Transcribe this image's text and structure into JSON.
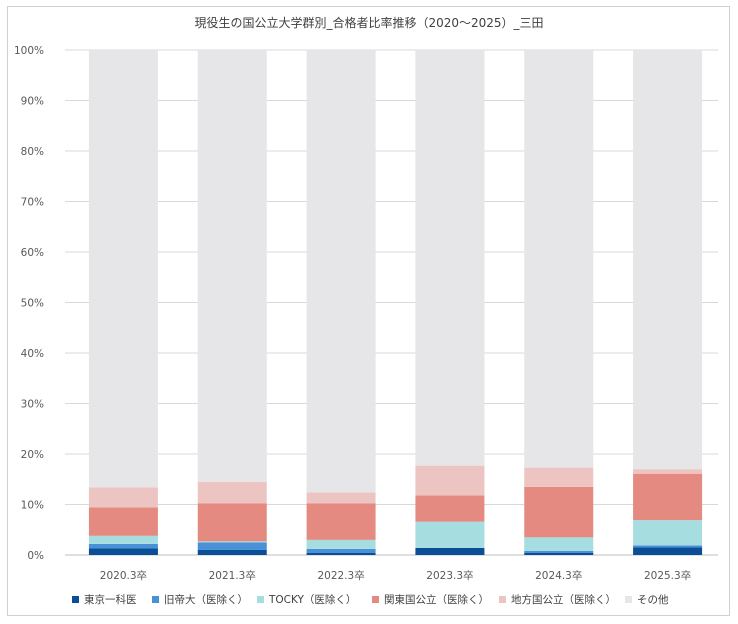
{
  "chart_data": {
    "type": "bar",
    "stacked": true,
    "normalized": true,
    "title": "現役生の国公立大学群別_合格者比率推移（2020〜2025）_三田",
    "categories": [
      "2020.3卒",
      "2021.3卒",
      "2022.3卒",
      "2023.3卒",
      "2024.3卒",
      "2025.3卒"
    ],
    "ylim": [
      0,
      100
    ],
    "y_ticks": [
      "0%",
      "10%",
      "20%",
      "30%",
      "40%",
      "50%",
      "60%",
      "70%",
      "80%",
      "90%",
      "100%"
    ],
    "grid": true,
    "legend_position": "bottom",
    "series": [
      {
        "name": "東京一科医",
        "color": "#0a4e97",
        "values": [
          1.3,
          1.0,
          0.4,
          1.4,
          0.4,
          1.5
        ]
      },
      {
        "name": "旧帝大（医除く）",
        "color": "#4a90d6",
        "values": [
          0.9,
          1.5,
          0.8,
          0.0,
          0.4,
          0.4
        ]
      },
      {
        "name": "TOCKY（医除く）",
        "color": "#a6dde0",
        "values": [
          1.6,
          0.2,
          1.8,
          5.2,
          2.7,
          5.0
        ]
      },
      {
        "name": "関東国公立（医除く）",
        "color": "#e48a80",
        "values": [
          5.6,
          7.5,
          7.2,
          5.2,
          10.0,
          9.2
        ]
      },
      {
        "name": "地方国公立（医除く）",
        "color": "#ecc5c2",
        "values": [
          4.0,
          4.3,
          2.2,
          5.9,
          3.8,
          0.9
        ]
      },
      {
        "name": "その他",
        "color": "#e6e6e9",
        "values": [
          86.6,
          85.5,
          87.6,
          82.3,
          82.7,
          83.0
        ]
      }
    ]
  }
}
